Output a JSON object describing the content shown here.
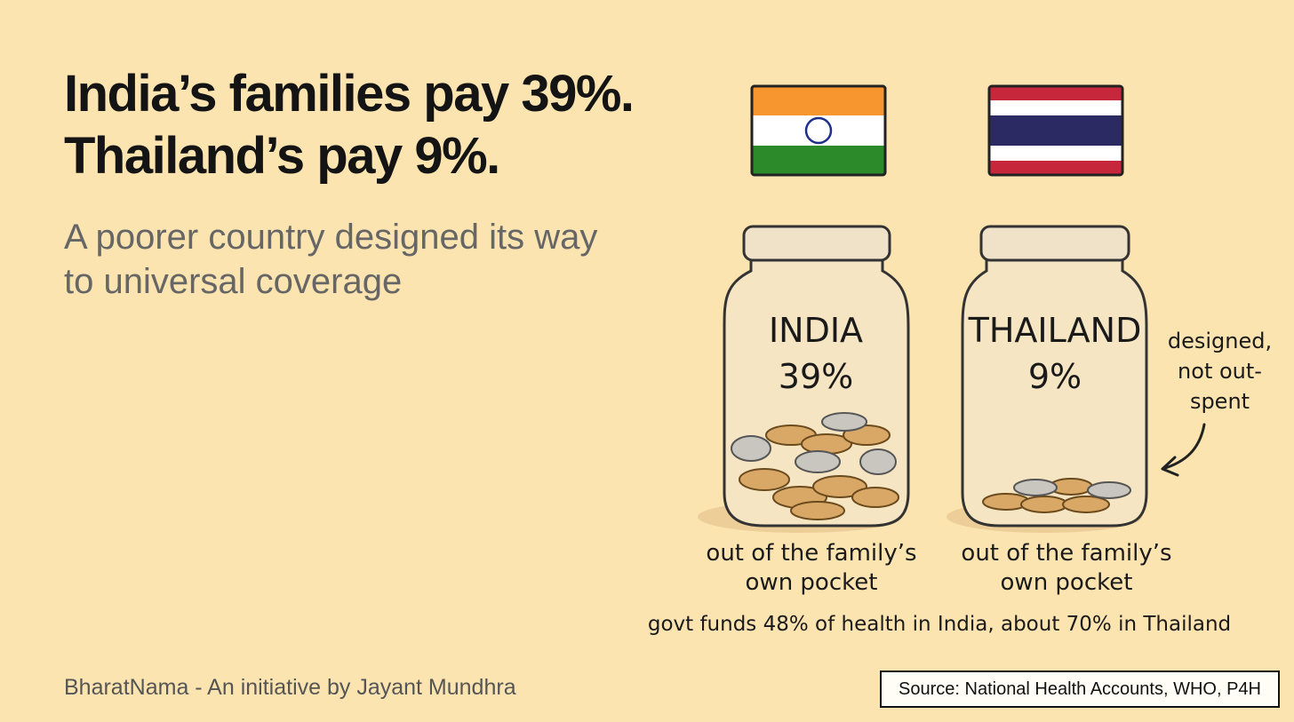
{
  "headline": [
    "India’s families pay 39%.",
    "Thailand’s pay 9%."
  ],
  "subtitle": "A poorer country designed its way to universal coverage",
  "jars": [
    {
      "country": "INDIA",
      "share": "39%",
      "caption": "out of the family’s own pocket"
    },
    {
      "country": "THAILAND",
      "share": "9%",
      "caption": "out of the family’s own pocket"
    }
  ],
  "annotation": "designed, not out-spent",
  "note": "govt funds 48% of health in India, about 70% in Thailand",
  "footer": {
    "credit": "BharatNama - An initiative by Jayant Mundhra",
    "source": "Source: National Health Accounts, WHO, P4H"
  }
}
